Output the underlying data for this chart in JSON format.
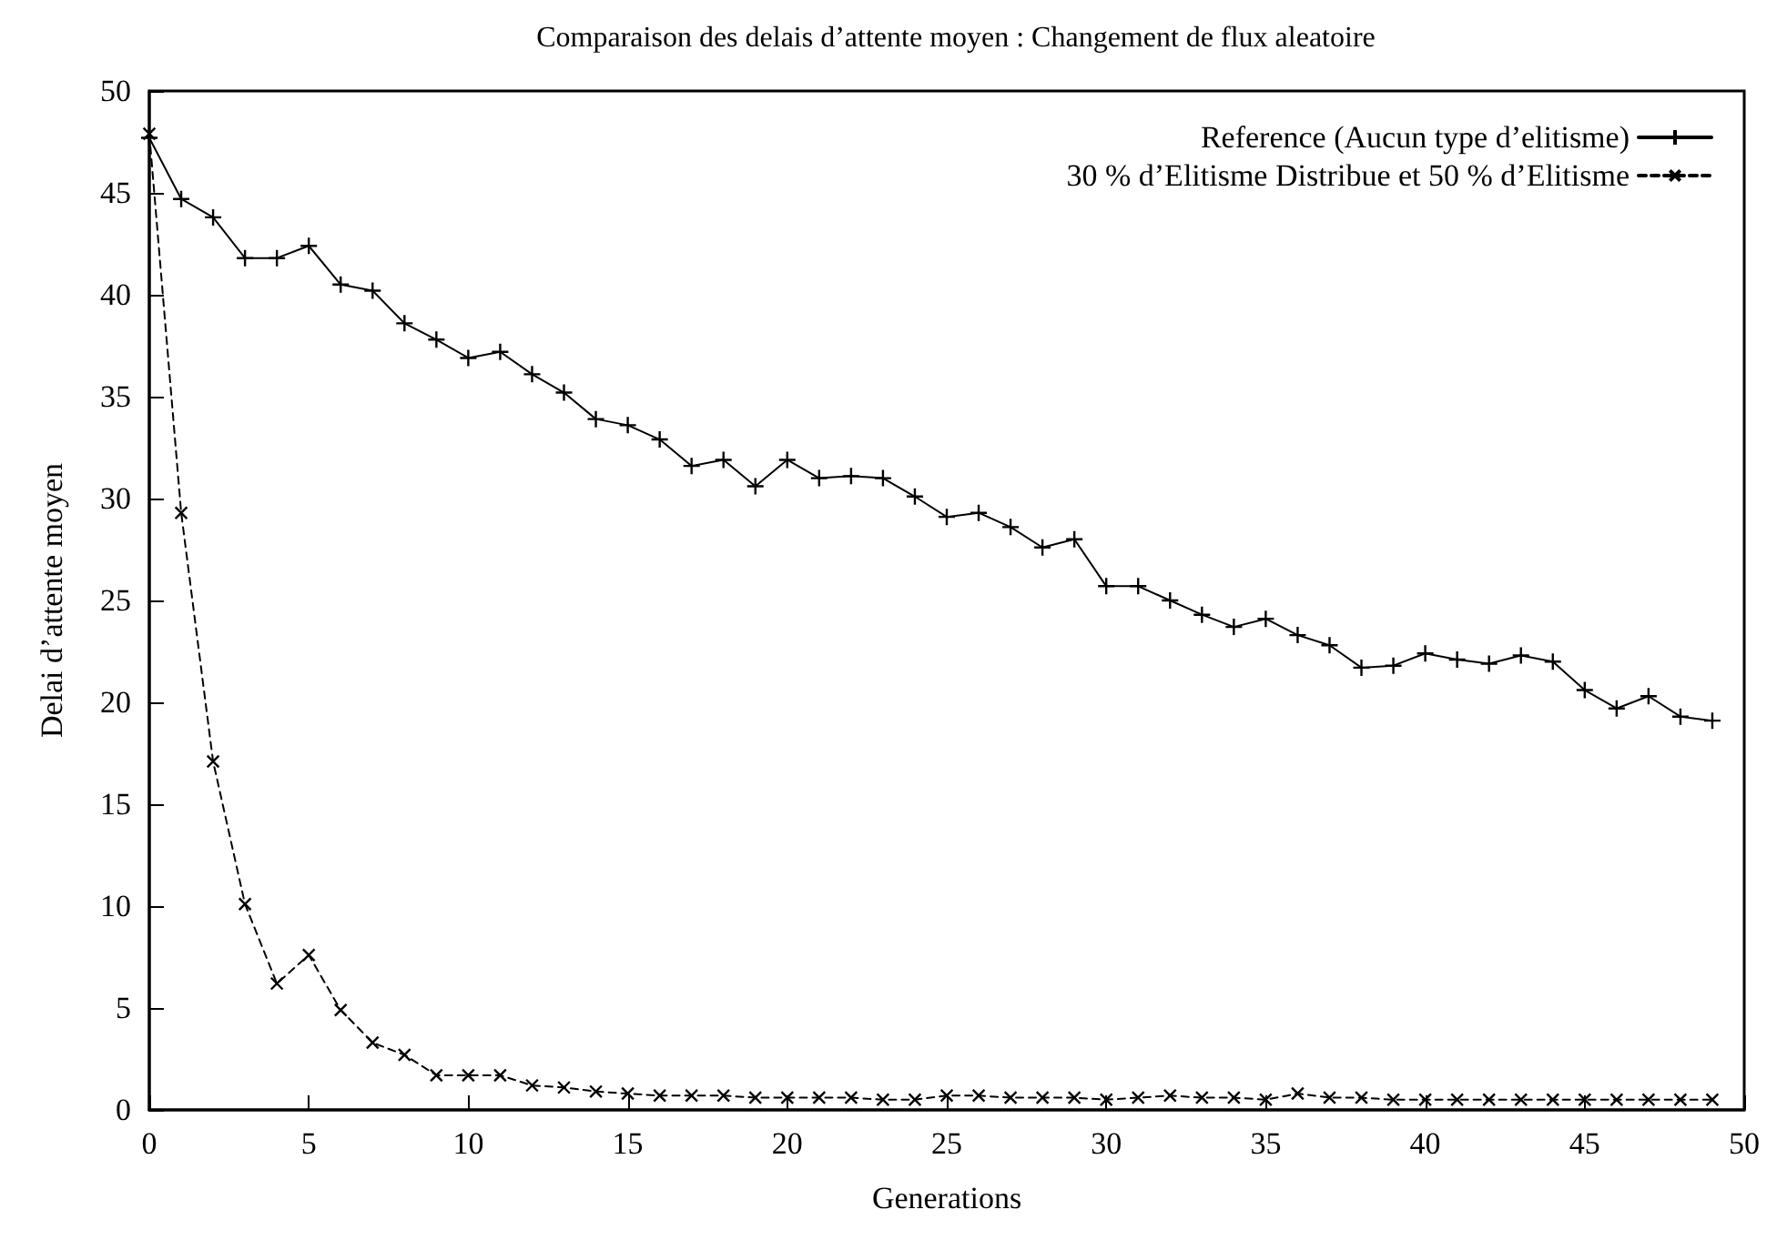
{
  "chart_data": {
    "type": "line",
    "title": "Comparaison des delais d’attente moyen : Changement de flux aleatoire",
    "xlabel": "Generations",
    "ylabel": "Delai d’attente moyen",
    "x": [
      0,
      1,
      2,
      3,
      4,
      5,
      6,
      7,
      8,
      9,
      10,
      11,
      12,
      13,
      14,
      15,
      16,
      17,
      18,
      19,
      20,
      21,
      22,
      23,
      24,
      25,
      26,
      27,
      28,
      29,
      30,
      31,
      32,
      33,
      34,
      35,
      36,
      37,
      38,
      39,
      40,
      41,
      42,
      43,
      44,
      45,
      46,
      47,
      48,
      49
    ],
    "series": [
      {
        "name": "Reference (Aucun type d’elitisme)",
        "color": "#000000",
        "line_style": "solid",
        "values": [
          47.7,
          44.7,
          43.8,
          41.8,
          41.8,
          42.4,
          40.5,
          40.2,
          38.6,
          37.8,
          36.9,
          37.2,
          36.1,
          35.2,
          33.9,
          33.6,
          32.9,
          31.6,
          31.9,
          30.6,
          31.9,
          31.0,
          31.1,
          31.0,
          30.1,
          29.1,
          29.3,
          28.6,
          27.6,
          28.0,
          25.7,
          25.7,
          25.0,
          24.3,
          23.7,
          24.1,
          23.3,
          22.8,
          21.7,
          21.8,
          22.4,
          22.1,
          21.9,
          22.3,
          22.0,
          20.6,
          19.7,
          20.3,
          19.3,
          19.1
        ]
      },
      {
        "name": "30 % d’Elitisme Distribue et 50 % d’Elitisme",
        "color": "#000000",
        "line_style": "dashed",
        "values": [
          47.9,
          29.3,
          17.1,
          10.1,
          6.2,
          7.6,
          4.9,
          3.3,
          2.7,
          1.7,
          1.7,
          1.7,
          1.2,
          1.1,
          0.9,
          0.8,
          0.7,
          0.7,
          0.7,
          0.6,
          0.6,
          0.6,
          0.6,
          0.5,
          0.5,
          0.7,
          0.7,
          0.6,
          0.6,
          0.6,
          0.5,
          0.6,
          0.7,
          0.6,
          0.6,
          0.5,
          0.8,
          0.6,
          0.6,
          0.5,
          0.5,
          0.5,
          0.5,
          0.5,
          0.5,
          0.5,
          0.5,
          0.5,
          0.5,
          0.5
        ]
      }
    ],
    "xlim": [
      0,
      50
    ],
    "xticks": [
      0,
      5,
      10,
      15,
      20,
      25,
      30,
      35,
      40,
      45,
      50
    ],
    "ylim": [
      0,
      50
    ],
    "yticks": [
      0,
      5,
      10,
      15,
      20,
      25,
      30,
      35,
      40,
      45,
      50
    ],
    "grid": false,
    "legend": "top right",
    "marker": "cross"
  }
}
